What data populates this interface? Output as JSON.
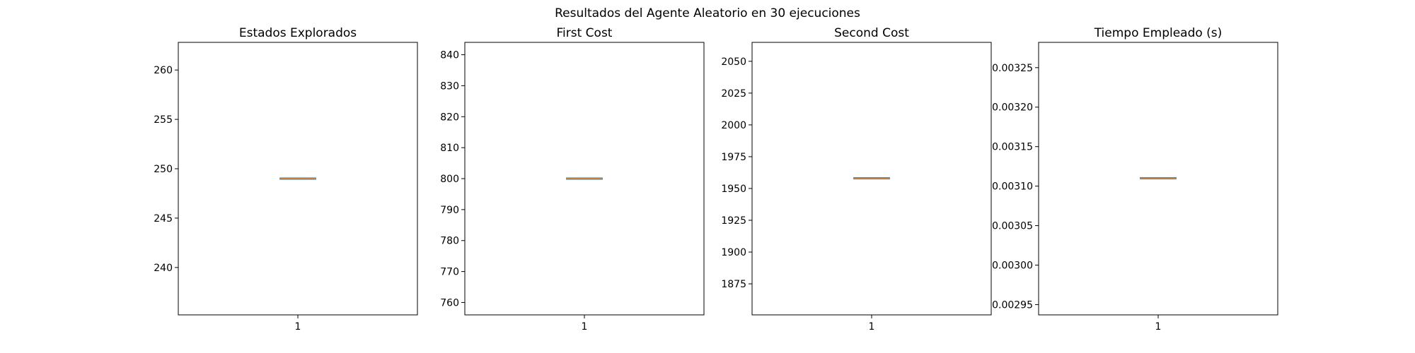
{
  "title": "Resultados del Agente Aleatorio en 30 ejecuciones",
  "colors": {
    "box": "#1f77b4",
    "median": "#ff7f0e",
    "frame": "#000000",
    "background": "#ffffff"
  },
  "chart_data": [
    {
      "type": "box",
      "title": "Estados Explorados",
      "categories": [
        "1"
      ],
      "values": [
        249
      ],
      "median": 249,
      "ylim": [
        235.2,
        262.8
      ],
      "yticks": [
        240,
        245,
        250,
        255,
        260
      ],
      "ytick_labels": [
        "240",
        "245",
        "250",
        "255",
        "260"
      ],
      "xlabel": "",
      "ylabel": "",
      "grid": false
    },
    {
      "type": "box",
      "title": "First Cost",
      "categories": [
        "1"
      ],
      "values": [
        800
      ],
      "median": 800,
      "ylim": [
        756,
        844
      ],
      "yticks": [
        760,
        770,
        780,
        790,
        800,
        810,
        820,
        830,
        840
      ],
      "ytick_labels": [
        "760",
        "770",
        "780",
        "790",
        "800",
        "810",
        "820",
        "830",
        "840"
      ],
      "xlabel": "",
      "ylabel": "",
      "grid": false
    },
    {
      "type": "box",
      "title": "Second Cost",
      "categories": [
        "1"
      ],
      "values": [
        1958
      ],
      "median": 1958,
      "ylim": [
        1850.6,
        2064.9
      ],
      "yticks": [
        1875,
        1900,
        1925,
        1950,
        1975,
        2000,
        2025,
        2050
      ],
      "ytick_labels": [
        "1875",
        "1900",
        "1925",
        "1950",
        "1975",
        "2000",
        "2025",
        "2050"
      ],
      "xlabel": "",
      "ylabel": "",
      "grid": false
    },
    {
      "type": "box",
      "title": "Tiempo Empleado (s)",
      "categories": [
        "1"
      ],
      "values": [
        0.00311
      ],
      "median": 0.00311,
      "ylim": [
        0.002937,
        0.003282
      ],
      "yticks": [
        0.00295,
        0.003,
        0.00305,
        0.0031,
        0.00315,
        0.0032,
        0.00325
      ],
      "ytick_labels": [
        "0.00295",
        "0.00300",
        "0.00305",
        "0.00310",
        "0.00315",
        "0.00320",
        "0.00325"
      ],
      "xlabel": "",
      "ylabel": "",
      "grid": false
    }
  ]
}
